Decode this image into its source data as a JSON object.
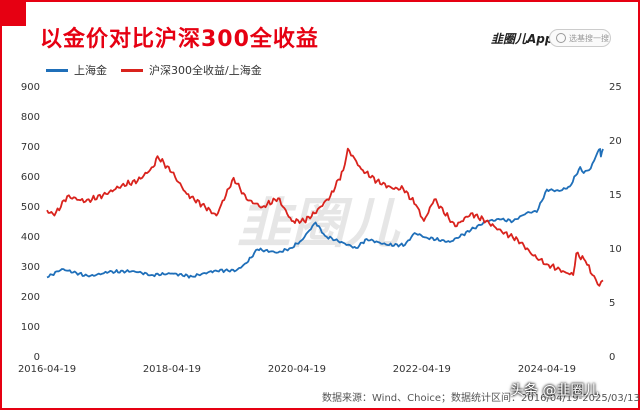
{
  "header": {
    "title": "以金价对比沪深300全收益",
    "logo_text": "韭圈儿App",
    "search_placeholder": "选基搜一搜"
  },
  "footer": {
    "source": "数据来源：Wind、Choice；数据统计区间：2016/04/19-2025/03/13",
    "watermark": "头条 @韭圈儿"
  },
  "colors": {
    "brand": "#e60012",
    "gold_series": "#1f6fb9",
    "ratio_series": "#d9231d"
  },
  "chart_data": {
    "type": "line",
    "xlabel": "",
    "ylabel_left": "",
    "ylabel_right": "",
    "x_ticks": [
      "2016-04-19",
      "2018-04-19",
      "2020-04-19",
      "2022-04-19",
      "2024-04-19"
    ],
    "x_range": [
      "2016-04-19",
      "2025-03-13"
    ],
    "ylim_left": [
      0,
      900
    ],
    "ylim_right": [
      0,
      25
    ],
    "y_ticks_left": [
      "0",
      "100",
      "200",
      "300",
      "400",
      "500",
      "600",
      "700",
      "800",
      "900"
    ],
    "y_ticks_right": [
      "0",
      "5",
      "10",
      "15",
      "20",
      "25"
    ],
    "legend": "top-left",
    "series": [
      {
        "name": "上海金",
        "axis": "left",
        "color": "#1f6fb9",
        "points": [
          [
            "2016-04-19",
            262
          ],
          [
            "2016-07-15",
            290
          ],
          [
            "2016-12-20",
            265
          ],
          [
            "2017-04-15",
            280
          ],
          [
            "2017-09-08",
            283
          ],
          [
            "2017-12-20",
            270
          ],
          [
            "2018-04-19",
            275
          ],
          [
            "2018-08-15",
            265
          ],
          [
            "2018-12-31",
            285
          ],
          [
            "2019-04-30",
            285
          ],
          [
            "2019-06-30",
            310
          ],
          [
            "2019-09-01",
            355
          ],
          [
            "2019-12-31",
            345
          ],
          [
            "2020-03-15",
            360
          ],
          [
            "2020-05-15",
            385
          ],
          [
            "2020-08-06",
            445
          ],
          [
            "2020-10-01",
            400
          ],
          [
            "2021-03-31",
            360
          ],
          [
            "2021-06-01",
            390
          ],
          [
            "2021-09-30",
            370
          ],
          [
            "2022-01-10",
            370
          ],
          [
            "2022-03-08",
            410
          ],
          [
            "2022-05-15",
            395
          ],
          [
            "2022-09-30",
            380
          ],
          [
            "2023-01-31",
            420
          ],
          [
            "2023-05-05",
            450
          ],
          [
            "2023-07-20",
            455
          ],
          [
            "2023-10-05",
            450
          ],
          [
            "2023-12-31",
            480
          ],
          [
            "2024-02-20",
            480
          ],
          [
            "2024-04-19",
            555
          ],
          [
            "2024-06-30",
            550
          ],
          [
            "2024-08-31",
            565
          ],
          [
            "2024-10-31",
            630
          ],
          [
            "2024-11-20",
            610
          ],
          [
            "2024-12-31",
            625
          ],
          [
            "2025-02-10",
            680
          ],
          [
            "2025-02-24",
            690
          ],
          [
            "2025-03-01",
            665
          ],
          [
            "2025-03-13",
            690
          ]
        ]
      },
      {
        "name": "沪深300全收益/上海金",
        "axis": "right",
        "color": "#d9231d",
        "points": [
          [
            "2016-04-19",
            13.5
          ],
          [
            "2016-06-01",
            13.0
          ],
          [
            "2016-08-15",
            14.8
          ],
          [
            "2016-11-30",
            14.3
          ],
          [
            "2017-03-31",
            15.0
          ],
          [
            "2017-06-30",
            15.8
          ],
          [
            "2017-09-30",
            16.2
          ],
          [
            "2017-12-31",
            17.5
          ],
          [
            "2018-01-25",
            18.5
          ],
          [
            "2018-04-19",
            17.0
          ],
          [
            "2018-07-15",
            15.0
          ],
          [
            "2018-10-31",
            13.8
          ],
          [
            "2019-01-04",
            13.0
          ],
          [
            "2019-04-15",
            16.5
          ],
          [
            "2019-06-30",
            14.5
          ],
          [
            "2019-09-30",
            13.8
          ],
          [
            "2019-12-31",
            14.6
          ],
          [
            "2020-03-20",
            12.5
          ],
          [
            "2020-05-31",
            12.5
          ],
          [
            "2020-07-31",
            13.2
          ],
          [
            "2020-10-31",
            14.8
          ],
          [
            "2021-01-15",
            17.2
          ],
          [
            "2021-02-10",
            19.2
          ],
          [
            "2021-04-30",
            17.3
          ],
          [
            "2021-07-31",
            16.2
          ],
          [
            "2021-10-31",
            15.5
          ],
          [
            "2021-12-31",
            15.5
          ],
          [
            "2022-03-15",
            14.0
          ],
          [
            "2022-05-01",
            12.5
          ],
          [
            "2022-07-01",
            14.5
          ],
          [
            "2022-10-31",
            12.0
          ],
          [
            "2023-01-31",
            13.2
          ],
          [
            "2023-04-30",
            12.5
          ],
          [
            "2023-07-31",
            11.5
          ],
          [
            "2023-10-31",
            10.8
          ],
          [
            "2024-01-31",
            9.3
          ],
          [
            "2024-04-19",
            8.5
          ],
          [
            "2024-07-31",
            7.8
          ],
          [
            "2024-09-20",
            7.5
          ],
          [
            "2024-10-08",
            9.5
          ],
          [
            "2024-11-30",
            8.8
          ],
          [
            "2025-01-10",
            7.5
          ],
          [
            "2025-02-20",
            6.5
          ],
          [
            "2025-03-13",
            7.0
          ]
        ]
      }
    ]
  }
}
